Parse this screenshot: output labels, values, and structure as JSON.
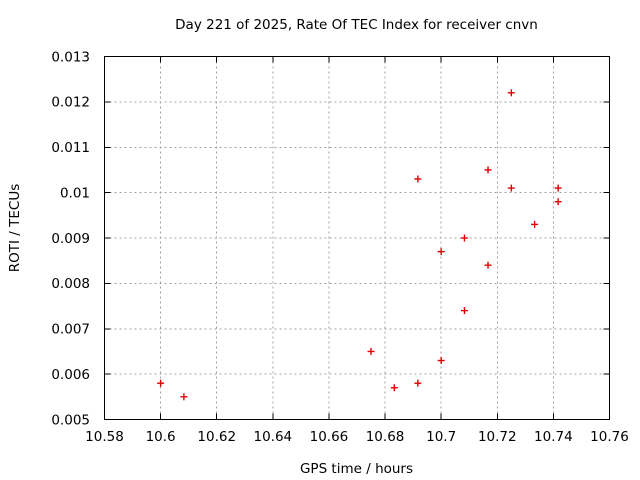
{
  "figure": {
    "background_color": "#ffffff",
    "frame_color": "#000000",
    "text_color": "#000000"
  },
  "chart_data": {
    "type": "scatter",
    "title": "Day 221 of 2025, Rate Of TEC Index for receiver cnvn",
    "xlabel": "GPS time / hours",
    "ylabel": "ROTI / TECUs",
    "xlim": [
      10.58,
      10.76
    ],
    "ylim": [
      0.005,
      0.013
    ],
    "x_tick_values": [
      10.58,
      10.6,
      10.62,
      10.64,
      10.66,
      10.68,
      10.7,
      10.72,
      10.74,
      10.76
    ],
    "x_tick_labels": [
      "10.58",
      "10.6",
      "10.62",
      "10.64",
      "10.66",
      "10.68",
      "10.7",
      "10.72",
      "10.74",
      "10.76"
    ],
    "y_tick_values": [
      0.005,
      0.006,
      0.007,
      0.008,
      0.009,
      0.01,
      0.011,
      0.012,
      0.013
    ],
    "y_tick_labels": [
      "0.005",
      "0.006",
      "0.007",
      "0.008",
      "0.009",
      "0.01",
      "0.011",
      "0.012",
      "0.013"
    ],
    "grid": "dashed",
    "grid_color": "#a0a0a0",
    "legend": "none",
    "marker": {
      "shape": "plus",
      "color": "#e00000",
      "size": 7
    },
    "points": [
      [
        10.6,
        0.0058
      ],
      [
        10.6083,
        0.0055
      ],
      [
        10.675,
        0.0065
      ],
      [
        10.6833,
        0.0057
      ],
      [
        10.6917,
        0.0058
      ],
      [
        10.6917,
        0.0103
      ],
      [
        10.7,
        0.0063
      ],
      [
        10.7,
        0.0087
      ],
      [
        10.7083,
        0.0074
      ],
      [
        10.7083,
        0.009
      ],
      [
        10.7167,
        0.0084
      ],
      [
        10.7167,
        0.0105
      ],
      [
        10.725,
        0.0101
      ],
      [
        10.725,
        0.0122
      ],
      [
        10.7333,
        0.0093
      ],
      [
        10.7417,
        0.0098
      ],
      [
        10.7417,
        0.0101
      ]
    ]
  }
}
